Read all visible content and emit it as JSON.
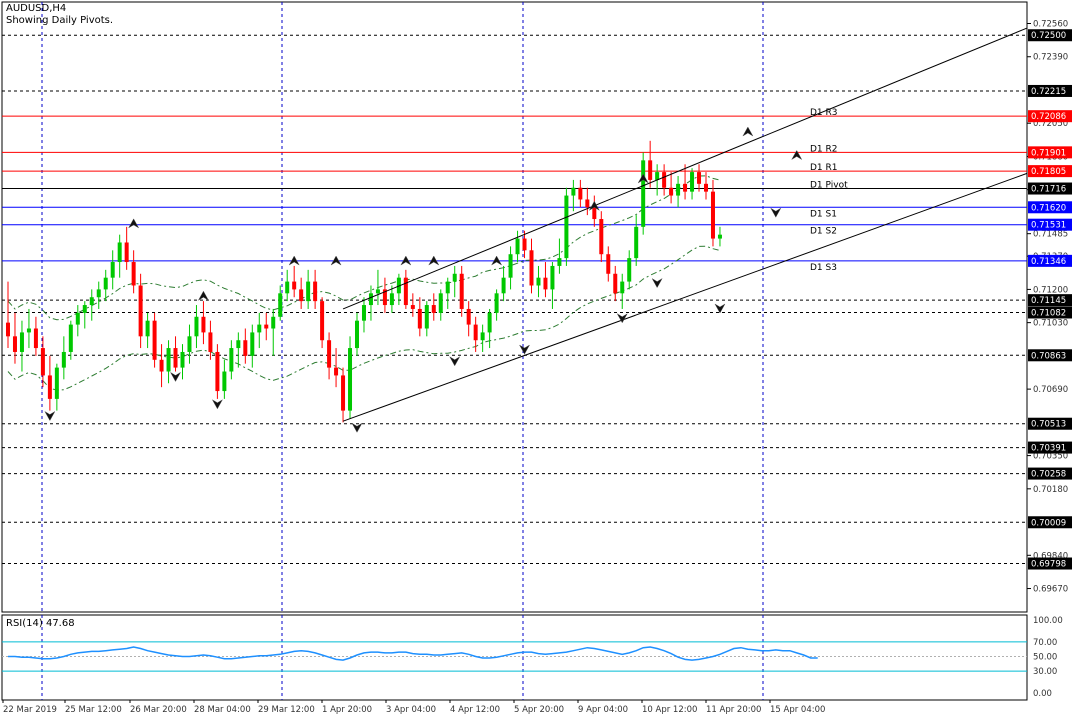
{
  "symbol_title": "AUDUSD,H4",
  "indicator_note": "Showing Daily Pivots.",
  "colors": {
    "bull": "#00c800",
    "bear": "#ff0000",
    "grid": "#0000c8",
    "resistance": "#ff0000",
    "support": "#0000ff",
    "pivot": "#000000",
    "hline": "#000000",
    "envelope": "#2e7d32",
    "rsi_line": "#1e90ff",
    "rsi_level": "#00bcd4",
    "label_dark_bg": "#000000",
    "label_red_bg": "#ff0000",
    "label_blue_bg": "#0000ff"
  },
  "chart_data": [
    {
      "type": "candlestick",
      "title": "AUDUSD,H4",
      "subtitle": "Showing Daily Pivots.",
      "timeframe": "H4",
      "ylim": [
        0.6955,
        0.7267
      ],
      "price_axis_ticks": [
        "0.72560",
        "0.72390",
        "0.72050",
        "0.71880",
        "0.71710",
        "0.71485",
        "0.71370",
        "0.71200",
        "0.71030",
        "0.70690",
        "0.70350",
        "0.70180",
        "0.69840",
        "0.69670"
      ],
      "time_axis_labels": [
        "22 Mar 2019",
        "25 Mar 12:00",
        "26 Mar 20:00",
        "28 Mar 04:00",
        "29 Mar 12:00",
        "1 Apr 20:00",
        "3 Apr 04:00",
        "4 Apr 12:00",
        "5 Apr 20:00",
        "9 Apr 04:00",
        "10 Apr 12:00",
        "11 Apr 20:00",
        "15 Apr 04:00"
      ],
      "candles": [
        {
          "o": 0.7103,
          "h": 0.7124,
          "l": 0.709,
          "c": 0.7096
        },
        {
          "o": 0.7096,
          "h": 0.7108,
          "l": 0.7082,
          "c": 0.7088
        },
        {
          "o": 0.7088,
          "h": 0.7104,
          "l": 0.7078,
          "c": 0.7098
        },
        {
          "o": 0.7098,
          "h": 0.711,
          "l": 0.709,
          "c": 0.71
        },
        {
          "o": 0.71,
          "h": 0.7106,
          "l": 0.7086,
          "c": 0.709
        },
        {
          "o": 0.709,
          "h": 0.7096,
          "l": 0.707,
          "c": 0.7076
        },
        {
          "o": 0.7076,
          "h": 0.7086,
          "l": 0.7058,
          "c": 0.7064
        },
        {
          "o": 0.7064,
          "h": 0.7082,
          "l": 0.7058,
          "c": 0.708
        },
        {
          "o": 0.708,
          "h": 0.7096,
          "l": 0.7074,
          "c": 0.7088
        },
        {
          "o": 0.7088,
          "h": 0.7104,
          "l": 0.7084,
          "c": 0.7102
        },
        {
          "o": 0.7102,
          "h": 0.7112,
          "l": 0.7096,
          "c": 0.7108
        },
        {
          "o": 0.7108,
          "h": 0.7114,
          "l": 0.71,
          "c": 0.7112
        },
        {
          "o": 0.7112,
          "h": 0.712,
          "l": 0.7104,
          "c": 0.7116
        },
        {
          "o": 0.7116,
          "h": 0.7124,
          "l": 0.711,
          "c": 0.712
        },
        {
          "o": 0.712,
          "h": 0.713,
          "l": 0.7114,
          "c": 0.7126
        },
        {
          "o": 0.7126,
          "h": 0.714,
          "l": 0.712,
          "c": 0.7134
        },
        {
          "o": 0.7134,
          "h": 0.7148,
          "l": 0.7126,
          "c": 0.7144
        },
        {
          "o": 0.7144,
          "h": 0.7152,
          "l": 0.713,
          "c": 0.7134
        },
        {
          "o": 0.7134,
          "h": 0.714,
          "l": 0.7118,
          "c": 0.7122
        },
        {
          "o": 0.7122,
          "h": 0.7128,
          "l": 0.709,
          "c": 0.7096
        },
        {
          "o": 0.7096,
          "h": 0.7108,
          "l": 0.709,
          "c": 0.7104
        },
        {
          "o": 0.7104,
          "h": 0.7108,
          "l": 0.708,
          "c": 0.7084
        },
        {
          "o": 0.7084,
          "h": 0.7092,
          "l": 0.707,
          "c": 0.7078
        },
        {
          "o": 0.7078,
          "h": 0.7094,
          "l": 0.7072,
          "c": 0.709
        },
        {
          "o": 0.709,
          "h": 0.7096,
          "l": 0.7078,
          "c": 0.708
        },
        {
          "o": 0.708,
          "h": 0.7092,
          "l": 0.7074,
          "c": 0.7088
        },
        {
          "o": 0.7088,
          "h": 0.7102,
          "l": 0.7082,
          "c": 0.7096
        },
        {
          "o": 0.7096,
          "h": 0.7112,
          "l": 0.709,
          "c": 0.7106
        },
        {
          "o": 0.7106,
          "h": 0.7114,
          "l": 0.7092,
          "c": 0.7098
        },
        {
          "o": 0.7098,
          "h": 0.7104,
          "l": 0.7084,
          "c": 0.7088
        },
        {
          "o": 0.7088,
          "h": 0.7092,
          "l": 0.7064,
          "c": 0.7068
        },
        {
          "o": 0.7068,
          "h": 0.7084,
          "l": 0.7064,
          "c": 0.7078
        },
        {
          "o": 0.7078,
          "h": 0.7094,
          "l": 0.7074,
          "c": 0.709
        },
        {
          "o": 0.709,
          "h": 0.7098,
          "l": 0.708,
          "c": 0.7094
        },
        {
          "o": 0.7094,
          "h": 0.71,
          "l": 0.7082,
          "c": 0.7086
        },
        {
          "o": 0.7086,
          "h": 0.7102,
          "l": 0.708,
          "c": 0.7098
        },
        {
          "o": 0.7098,
          "h": 0.7108,
          "l": 0.709,
          "c": 0.7102
        },
        {
          "o": 0.7102,
          "h": 0.7108,
          "l": 0.7094,
          "c": 0.71
        },
        {
          "o": 0.71,
          "h": 0.711,
          "l": 0.7086,
          "c": 0.7106
        },
        {
          "o": 0.7106,
          "h": 0.7122,
          "l": 0.7104,
          "c": 0.7118
        },
        {
          "o": 0.7118,
          "h": 0.713,
          "l": 0.7114,
          "c": 0.7124
        },
        {
          "o": 0.7124,
          "h": 0.7132,
          "l": 0.7116,
          "c": 0.712
        },
        {
          "o": 0.712,
          "h": 0.7126,
          "l": 0.711,
          "c": 0.7114
        },
        {
          "o": 0.7114,
          "h": 0.713,
          "l": 0.711,
          "c": 0.7124
        },
        {
          "o": 0.7124,
          "h": 0.713,
          "l": 0.711,
          "c": 0.7114
        },
        {
          "o": 0.7114,
          "h": 0.7116,
          "l": 0.709,
          "c": 0.7094
        },
        {
          "o": 0.7094,
          "h": 0.7098,
          "l": 0.7074,
          "c": 0.708
        },
        {
          "o": 0.708,
          "h": 0.709,
          "l": 0.707,
          "c": 0.7076
        },
        {
          "o": 0.7076,
          "h": 0.708,
          "l": 0.7052,
          "c": 0.7058
        },
        {
          "o": 0.7058,
          "h": 0.7096,
          "l": 0.7054,
          "c": 0.709
        },
        {
          "o": 0.709,
          "h": 0.7108,
          "l": 0.7086,
          "c": 0.7104
        },
        {
          "o": 0.7104,
          "h": 0.7116,
          "l": 0.7098,
          "c": 0.7112
        },
        {
          "o": 0.7112,
          "h": 0.7122,
          "l": 0.7104,
          "c": 0.7118
        },
        {
          "o": 0.7118,
          "h": 0.713,
          "l": 0.7112,
          "c": 0.712
        },
        {
          "o": 0.712,
          "h": 0.7126,
          "l": 0.7108,
          "c": 0.7112
        },
        {
          "o": 0.7112,
          "h": 0.7122,
          "l": 0.7108,
          "c": 0.7118
        },
        {
          "o": 0.7118,
          "h": 0.7128,
          "l": 0.7112,
          "c": 0.7126
        },
        {
          "o": 0.7126,
          "h": 0.713,
          "l": 0.711,
          "c": 0.7112
        },
        {
          "o": 0.7112,
          "h": 0.7118,
          "l": 0.7106,
          "c": 0.711
        },
        {
          "o": 0.711,
          "h": 0.7116,
          "l": 0.7096,
          "c": 0.71
        },
        {
          "o": 0.71,
          "h": 0.7114,
          "l": 0.7096,
          "c": 0.7112
        },
        {
          "o": 0.7112,
          "h": 0.7118,
          "l": 0.7104,
          "c": 0.7108
        },
        {
          "o": 0.7108,
          "h": 0.712,
          "l": 0.7104,
          "c": 0.7118
        },
        {
          "o": 0.7118,
          "h": 0.7126,
          "l": 0.711,
          "c": 0.7124
        },
        {
          "o": 0.7124,
          "h": 0.7132,
          "l": 0.7116,
          "c": 0.7128
        },
        {
          "o": 0.7128,
          "h": 0.7132,
          "l": 0.7106,
          "c": 0.711
        },
        {
          "o": 0.711,
          "h": 0.7114,
          "l": 0.7096,
          "c": 0.7102
        },
        {
          "o": 0.7102,
          "h": 0.7106,
          "l": 0.7088,
          "c": 0.7094
        },
        {
          "o": 0.7094,
          "h": 0.7102,
          "l": 0.7088,
          "c": 0.7098
        },
        {
          "o": 0.7098,
          "h": 0.711,
          "l": 0.709,
          "c": 0.7108
        },
        {
          "o": 0.7108,
          "h": 0.712,
          "l": 0.7104,
          "c": 0.7118
        },
        {
          "o": 0.7118,
          "h": 0.7132,
          "l": 0.7114,
          "c": 0.7126
        },
        {
          "o": 0.7126,
          "h": 0.7142,
          "l": 0.712,
          "c": 0.7138
        },
        {
          "o": 0.7138,
          "h": 0.715,
          "l": 0.7134,
          "c": 0.7146
        },
        {
          "o": 0.7146,
          "h": 0.715,
          "l": 0.7136,
          "c": 0.714
        },
        {
          "o": 0.714,
          "h": 0.7146,
          "l": 0.7118,
          "c": 0.7122
        },
        {
          "o": 0.7122,
          "h": 0.7132,
          "l": 0.7116,
          "c": 0.7126
        },
        {
          "o": 0.7126,
          "h": 0.7134,
          "l": 0.7116,
          "c": 0.712
        },
        {
          "o": 0.712,
          "h": 0.7134,
          "l": 0.711,
          "c": 0.7132
        },
        {
          "o": 0.7132,
          "h": 0.7146,
          "l": 0.7128,
          "c": 0.7136
        },
        {
          "o": 0.7136,
          "h": 0.7172,
          "l": 0.7132,
          "c": 0.7168
        },
        {
          "o": 0.7168,
          "h": 0.7176,
          "l": 0.716,
          "c": 0.7172
        },
        {
          "o": 0.7172,
          "h": 0.7176,
          "l": 0.7162,
          "c": 0.7166
        },
        {
          "o": 0.7166,
          "h": 0.7172,
          "l": 0.7158,
          "c": 0.7162
        },
        {
          "o": 0.7162,
          "h": 0.7168,
          "l": 0.7152,
          "c": 0.7156
        },
        {
          "o": 0.7156,
          "h": 0.716,
          "l": 0.7134,
          "c": 0.7138
        },
        {
          "o": 0.7138,
          "h": 0.7142,
          "l": 0.7124,
          "c": 0.7128
        },
        {
          "o": 0.7128,
          "h": 0.7132,
          "l": 0.7114,
          "c": 0.7118
        },
        {
          "o": 0.7118,
          "h": 0.7128,
          "l": 0.711,
          "c": 0.7124
        },
        {
          "o": 0.7124,
          "h": 0.714,
          "l": 0.712,
          "c": 0.7136
        },
        {
          "o": 0.7136,
          "h": 0.7158,
          "l": 0.7132,
          "c": 0.7152
        },
        {
          "o": 0.7152,
          "h": 0.719,
          "l": 0.7148,
          "c": 0.7186
        },
        {
          "o": 0.7186,
          "h": 0.7196,
          "l": 0.7172,
          "c": 0.7176
        },
        {
          "o": 0.7176,
          "h": 0.7184,
          "l": 0.7168,
          "c": 0.718
        },
        {
          "o": 0.718,
          "h": 0.7184,
          "l": 0.7168,
          "c": 0.7172
        },
        {
          "o": 0.7172,
          "h": 0.718,
          "l": 0.7164,
          "c": 0.7168
        },
        {
          "o": 0.7168,
          "h": 0.7178,
          "l": 0.7162,
          "c": 0.7174
        },
        {
          "o": 0.7174,
          "h": 0.7184,
          "l": 0.7166,
          "c": 0.717
        },
        {
          "o": 0.717,
          "h": 0.7182,
          "l": 0.7166,
          "c": 0.718
        },
        {
          "o": 0.718,
          "h": 0.7184,
          "l": 0.717,
          "c": 0.7174
        },
        {
          "o": 0.7174,
          "h": 0.718,
          "l": 0.7166,
          "c": 0.717
        },
        {
          "o": 0.717,
          "h": 0.7176,
          "l": 0.7142,
          "c": 0.7146
        },
        {
          "o": 0.7146,
          "h": 0.7152,
          "l": 0.7142,
          "c": 0.7148
        }
      ],
      "horizontal_levels": [
        {
          "value": 0.725,
          "label": "0.72500",
          "style": "dashed"
        },
        {
          "value": 0.72215,
          "label": "0.72215",
          "style": "dashed"
        },
        {
          "value": 0.72086,
          "label": "0.72086",
          "style": "solid",
          "kind": "resistance",
          "name": "D1 R3"
        },
        {
          "value": 0.71901,
          "label": "0.71901",
          "style": "solid",
          "kind": "resistance",
          "name": "D1 R2"
        },
        {
          "value": 0.71805,
          "label": "0.71805",
          "style": "solid",
          "kind": "resistance",
          "name": "D1 R1"
        },
        {
          "value": 0.71716,
          "label": "0.71716",
          "style": "solid",
          "kind": "pivot",
          "name": "D1 Pivot"
        },
        {
          "value": 0.7162,
          "label": "0.71620",
          "style": "solid",
          "kind": "support",
          "name": "D1 S1"
        },
        {
          "value": 0.71531,
          "label": "0.71531",
          "style": "solid",
          "kind": "support",
          "name": "D1 S2"
        },
        {
          "value": 0.71346,
          "label": "0.71346",
          "style": "solid",
          "kind": "support",
          "name": "D1 S3"
        },
        {
          "value": 0.71145,
          "label": "0.71145",
          "style": "dashed"
        },
        {
          "value": 0.71082,
          "label": "0.71082",
          "style": "dashed"
        },
        {
          "value": 0.70863,
          "label": "0.70863",
          "style": "dashed"
        },
        {
          "value": 0.70513,
          "label": "0.70513",
          "style": "dashed"
        },
        {
          "value": 0.70391,
          "label": "0.70391",
          "style": "dashed"
        },
        {
          "value": 0.70258,
          "label": "0.70258",
          "style": "dashed"
        },
        {
          "value": 0.70009,
          "label": "0.70009",
          "style": "dashed"
        },
        {
          "value": 0.69798,
          "label": "0.69798",
          "style": "dashed"
        }
      ],
      "channel_lines": [
        {
          "from": {
            "i": 48,
            "p": 0.70526
          },
          "to": {
            "i": 140,
            "p": 0.71716
          }
        },
        {
          "from": {
            "i": 48,
            "p": 0.711
          },
          "to": {
            "i": 140,
            "p": 0.72449
          }
        }
      ],
      "fractals": [
        {
          "i": 18,
          "p": 0.7153,
          "dir": "up"
        },
        {
          "i": 6,
          "p": 0.7056,
          "dir": "down"
        },
        {
          "i": 24,
          "p": 0.7076,
          "dir": "down"
        },
        {
          "i": 28,
          "p": 0.7116,
          "dir": "up"
        },
        {
          "i": 30,
          "p": 0.7062,
          "dir": "down"
        },
        {
          "i": 41,
          "p": 0.7134,
          "dir": "up"
        },
        {
          "i": 47,
          "p": 0.7134,
          "dir": "up"
        },
        {
          "i": 50,
          "p": 0.705,
          "dir": "down"
        },
        {
          "i": 57,
          "p": 0.7134,
          "dir": "up"
        },
        {
          "i": 61,
          "p": 0.7134,
          "dir": "up"
        },
        {
          "i": 64,
          "p": 0.7084,
          "dir": "down"
        },
        {
          "i": 70,
          "p": 0.7134,
          "dir": "up"
        },
        {
          "i": 74,
          "p": 0.709,
          "dir": "down"
        },
        {
          "i": 84,
          "p": 0.7162,
          "dir": "up"
        },
        {
          "i": 88,
          "p": 0.7106,
          "dir": "down"
        },
        {
          "i": 91,
          "p": 0.7176,
          "dir": "up"
        },
        {
          "i": 93,
          "p": 0.7124,
          "dir": "down"
        },
        {
          "i": 102,
          "p": 0.7111,
          "dir": "down"
        },
        {
          "i": 106,
          "p": 0.72,
          "dir": "up"
        },
        {
          "i": 110,
          "p": 0.716,
          "dir": "down"
        },
        {
          "i": 113,
          "p": 0.7188,
          "dir": "up"
        }
      ]
    },
    {
      "type": "line",
      "title": "RSI(14) 47.68",
      "name": "RSI(14)",
      "last_value": 47.68,
      "ylim": [
        0,
        100
      ],
      "levels": [
        70,
        30
      ],
      "axis_ticks": [
        "100.00",
        "70.00",
        "50.00",
        "30.00",
        "0.00"
      ],
      "values": [
        50,
        50,
        49,
        49,
        48,
        47,
        47,
        48,
        50,
        53,
        55,
        56,
        57,
        57,
        58,
        59,
        60,
        61,
        63,
        61,
        58,
        56,
        54,
        52,
        51,
        50,
        50,
        51,
        52,
        51,
        49,
        47,
        47,
        48,
        49,
        50,
        51,
        51,
        52,
        53,
        55,
        57,
        58,
        57,
        55,
        52,
        49,
        46,
        45,
        48,
        52,
        55,
        56,
        56,
        55,
        55,
        56,
        56,
        54,
        53,
        53,
        52,
        52,
        53,
        54,
        55,
        53,
        50,
        48,
        48,
        49,
        51,
        53,
        55,
        56,
        56,
        54,
        53,
        54,
        55,
        56,
        58,
        60,
        62,
        61,
        59,
        57,
        55,
        53,
        55,
        58,
        62,
        63,
        61,
        58,
        54,
        49,
        46,
        45,
        46,
        48,
        50,
        53,
        57,
        61,
        62,
        60,
        59,
        58,
        58,
        59,
        58,
        58,
        55,
        52,
        48,
        48
      ]
    }
  ]
}
